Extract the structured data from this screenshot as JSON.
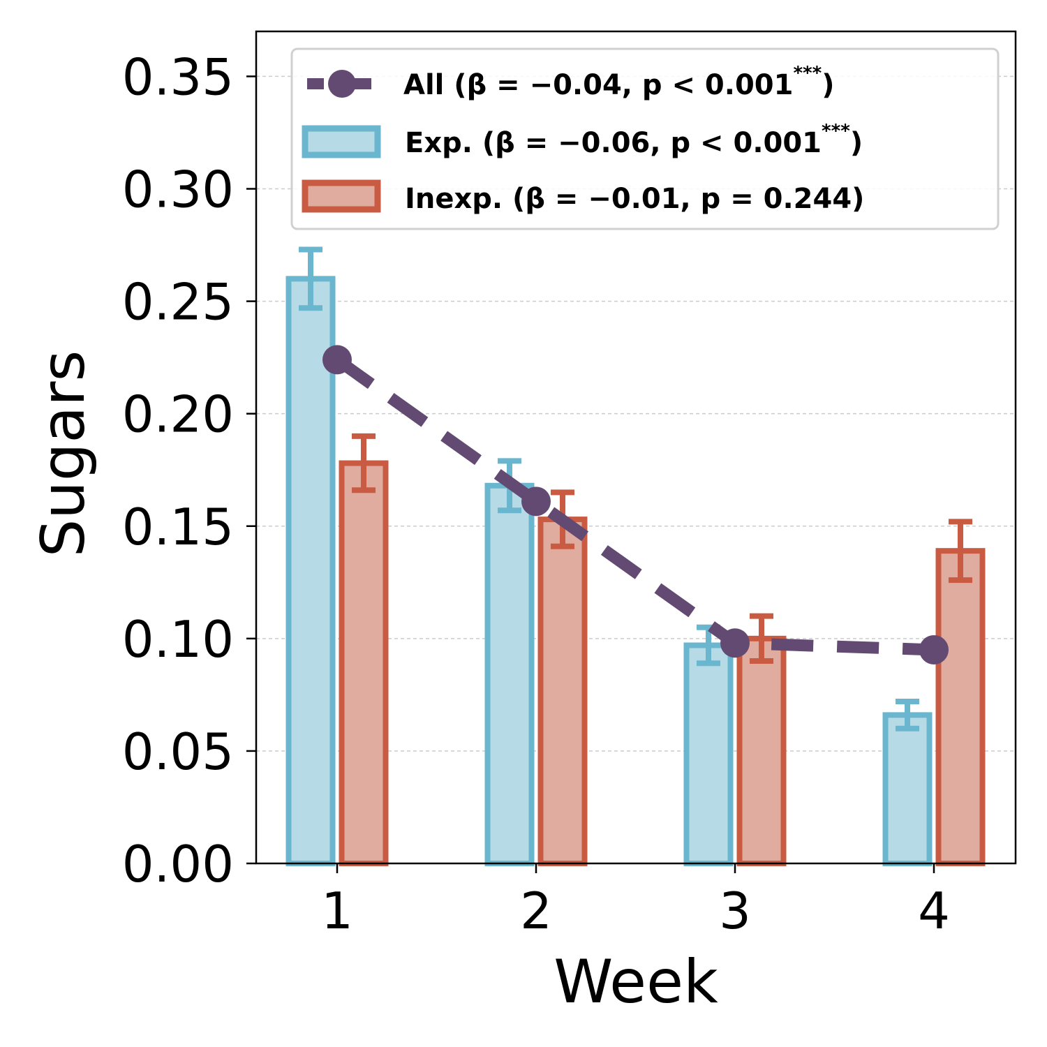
{
  "chart_data": {
    "type": "bar",
    "xlabel": "Week",
    "ylabel": "Sugars",
    "categories": [
      "1",
      "2",
      "3",
      "4"
    ],
    "ylim": [
      0,
      0.37
    ],
    "yticks": [
      "0.00",
      "0.05",
      "0.10",
      "0.15",
      "0.20",
      "0.25",
      "0.30",
      "0.35"
    ],
    "ytick_values": [
      0,
      0.05,
      0.1,
      0.15,
      0.2,
      0.25,
      0.3,
      0.35
    ],
    "grid": "y-dashed",
    "legend_position": "top-right",
    "series": [
      {
        "name": "Exp.",
        "kind": "bar",
        "legend": {
          "main": "Exp. (β = −0.06, p < 0.001",
          "sup": "***",
          "close": ")"
        },
        "values": [
          0.26,
          0.168,
          0.097,
          0.066
        ],
        "errors": [
          0.013,
          0.011,
          0.008,
          0.006
        ],
        "edge_color": "#6bb6cf",
        "fill_color": "#b6dbe6"
      },
      {
        "name": "Inexp.",
        "kind": "bar",
        "legend": {
          "main": "Inexp. (β = −0.01, p = 0.244)",
          "sup": "",
          "close": ""
        },
        "values": [
          0.178,
          0.153,
          0.1,
          0.139
        ],
        "errors": [
          0.012,
          0.012,
          0.01,
          0.013
        ],
        "edge_color": "#c85b42",
        "fill_color": "#e0aca0"
      },
      {
        "name": "All",
        "kind": "line",
        "legend": {
          "main": "All (β = −0.04, p < 0.001",
          "sup": "***",
          "close": ")"
        },
        "values": [
          0.224,
          0.161,
          0.098,
          0.095
        ],
        "color": "#634a72"
      }
    ]
  }
}
